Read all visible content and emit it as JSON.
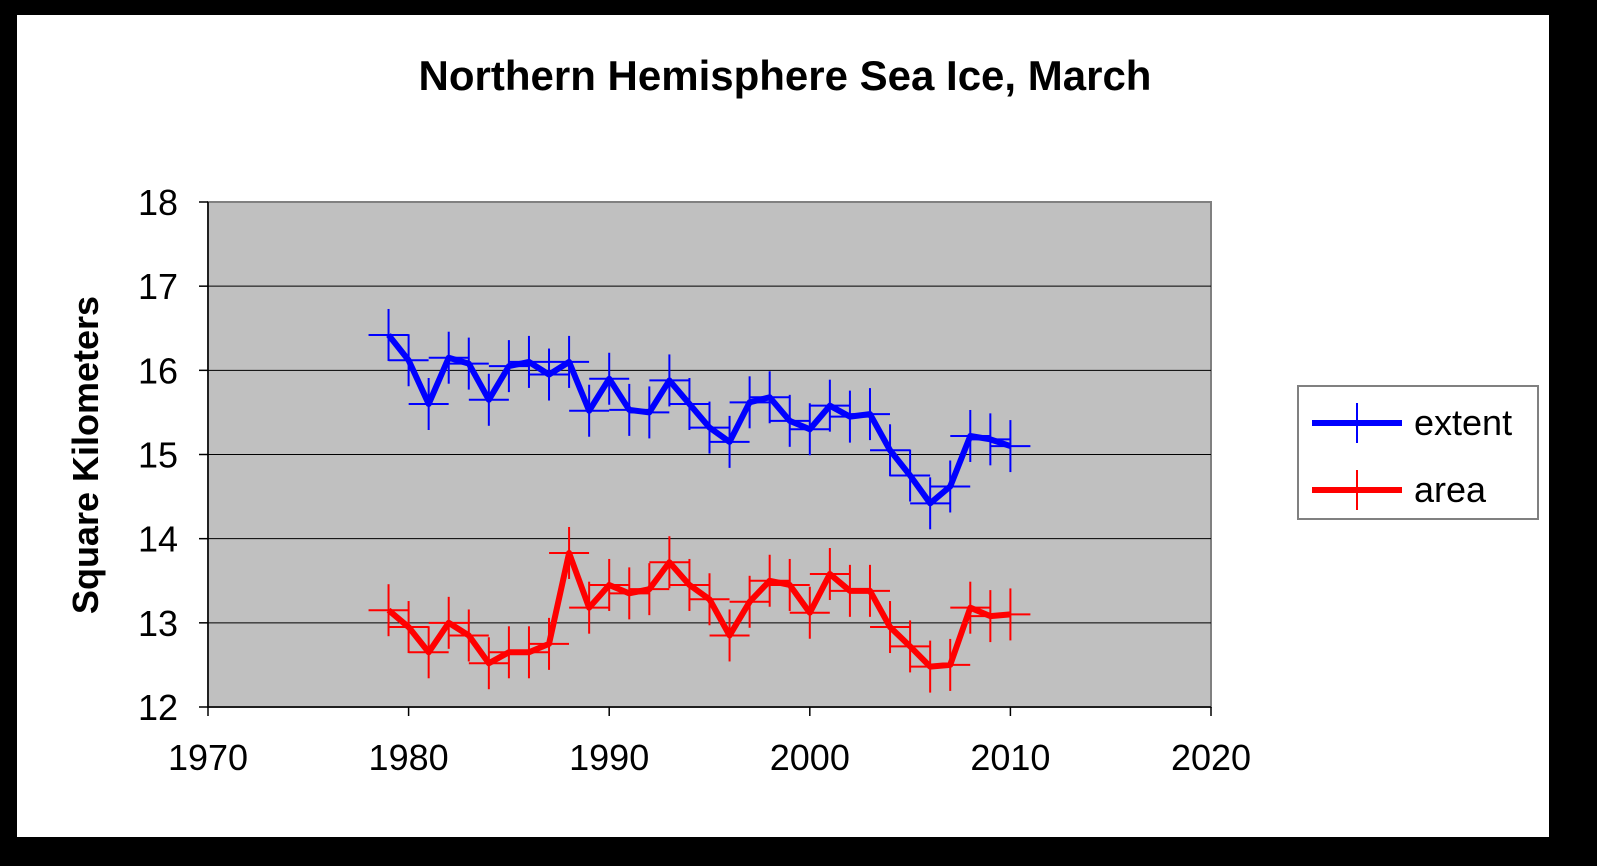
{
  "chart_data": {
    "type": "line",
    "title": "Northern Hemisphere Sea Ice, March",
    "xlabel": "",
    "ylabel": "Square Kilometers",
    "xlim": [
      1970,
      2020
    ],
    "ylim": [
      12,
      18
    ],
    "x_ticks": [
      "1970",
      "1980",
      "1990",
      "2000",
      "2010",
      "2020"
    ],
    "y_ticks": [
      "12",
      "13",
      "14",
      "15",
      "16",
      "17",
      "18"
    ],
    "grid": "horizontal",
    "plot_background": "#C0C0C0",
    "legend_position": "right",
    "x": [
      1979,
      1980,
      1981,
      1982,
      1983,
      1984,
      1985,
      1986,
      1987,
      1988,
      1989,
      1990,
      1991,
      1992,
      1993,
      1994,
      1995,
      1996,
      1997,
      1998,
      1999,
      2000,
      2001,
      2002,
      2003,
      2004,
      2005,
      2006,
      2007,
      2008,
      2009,
      2010
    ],
    "series": [
      {
        "name": "extent",
        "color": "#0000FF",
        "marker": "plus",
        "values": [
          16.42,
          16.12,
          15.6,
          16.15,
          16.08,
          15.65,
          16.05,
          16.1,
          15.95,
          16.1,
          15.52,
          15.9,
          15.53,
          15.5,
          15.88,
          15.6,
          15.32,
          15.15,
          15.62,
          15.68,
          15.4,
          15.3,
          15.58,
          15.45,
          15.48,
          15.05,
          14.75,
          14.42,
          14.62,
          15.22,
          15.18,
          15.1
        ]
      },
      {
        "name": "area",
        "color": "#FF0000",
        "marker": "plus",
        "values": [
          13.15,
          12.95,
          12.65,
          13.0,
          12.85,
          12.52,
          12.65,
          12.65,
          12.75,
          13.83,
          13.18,
          13.45,
          13.35,
          13.4,
          13.72,
          13.45,
          13.28,
          12.85,
          13.25,
          13.5,
          13.45,
          13.12,
          13.58,
          13.38,
          13.38,
          12.95,
          12.72,
          12.48,
          12.5,
          13.18,
          13.08,
          13.1
        ]
      }
    ]
  }
}
